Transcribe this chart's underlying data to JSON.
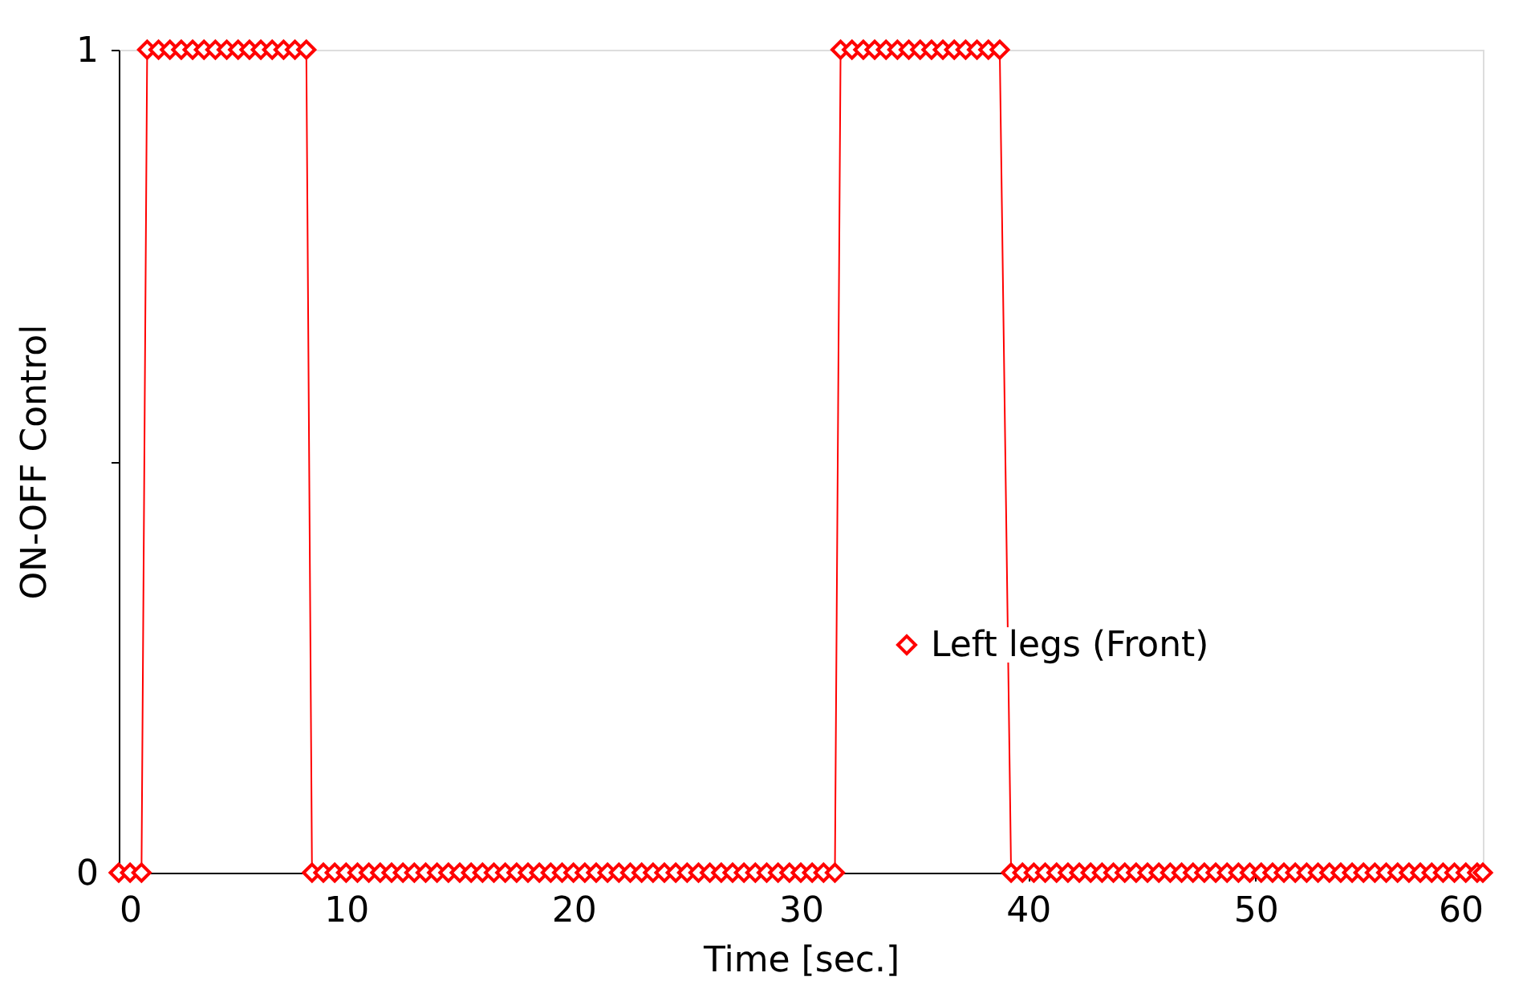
{
  "chart_data": {
    "type": "line",
    "xlabel": "Time [sec.]",
    "ylabel": "ON-OFF Control",
    "xlim": [
      0,
      60
    ],
    "xticks": [
      0,
      10,
      20,
      30,
      40,
      50,
      60
    ],
    "ylim": [
      0,
      1
    ],
    "yticks": [
      0,
      {
        "value": 0.5,
        "label": null
      },
      1
    ],
    "grid": false,
    "legend": "right",
    "marker": "diamond",
    "line_style": "solid",
    "series": [
      {
        "name": "Left legs (Front)",
        "color": "#ff0000",
        "x": [
          0,
          0.5,
          1.0,
          1.25,
          1.75,
          2.25,
          2.75,
          3.25,
          3.75,
          4.25,
          4.75,
          5.25,
          5.75,
          6.25,
          6.75,
          7.25,
          7.75,
          8.25,
          8.5,
          9,
          9.5,
          10,
          10.5,
          11,
          11.5,
          12,
          12.5,
          13,
          13.5,
          14,
          14.5,
          15,
          15.5,
          16,
          16.5,
          17,
          17.5,
          18,
          18.5,
          19,
          19.5,
          20,
          20.5,
          21,
          21.5,
          22,
          22.5,
          23,
          23.5,
          24,
          24.5,
          25,
          25.5,
          26,
          26.5,
          27,
          27.5,
          28,
          28.5,
          29,
          29.5,
          30,
          30.5,
          31,
          31.5,
          31.75,
          32.25,
          32.75,
          33.25,
          33.75,
          34.25,
          34.75,
          35.25,
          35.75,
          36.25,
          36.75,
          37.25,
          37.75,
          38.25,
          38.75,
          39.25,
          39.75,
          40.25,
          40.75,
          41.25,
          41.75,
          42.25,
          42.75,
          43.25,
          43.75,
          44.25,
          44.75,
          45.25,
          45.75,
          46.25,
          46.75,
          47.25,
          47.75,
          48.25,
          48.75,
          49.25,
          49.75,
          50.25,
          50.75,
          51.25,
          51.75,
          52.25,
          52.75,
          53.25,
          53.75,
          54.25,
          54.75,
          55.25,
          55.75,
          56.25,
          56.75,
          57.25,
          57.75,
          58.25,
          58.75,
          59.25,
          59.75,
          60
        ],
        "values": [
          0,
          0,
          0,
          1,
          1,
          1,
          1,
          1,
          1,
          1,
          1,
          1,
          1,
          1,
          1,
          1,
          1,
          1,
          0,
          0,
          0,
          0,
          0,
          0,
          0,
          0,
          0,
          0,
          0,
          0,
          0,
          0,
          0,
          0,
          0,
          0,
          0,
          0,
          0,
          0,
          0,
          0,
          0,
          0,
          0,
          0,
          0,
          0,
          0,
          0,
          0,
          0,
          0,
          0,
          0,
          0,
          0,
          0,
          0,
          0,
          0,
          0,
          0,
          0,
          0,
          1,
          1,
          1,
          1,
          1,
          1,
          1,
          1,
          1,
          1,
          1,
          1,
          1,
          1,
          1,
          0,
          0,
          0,
          0,
          0,
          0,
          0,
          0,
          0,
          0,
          0,
          0,
          0,
          0,
          0,
          0,
          0,
          0,
          0,
          0,
          0,
          0,
          0,
          0,
          0,
          0,
          0,
          0,
          0,
          0,
          0,
          0,
          0,
          0,
          0,
          0,
          0,
          0,
          0,
          0,
          0,
          0,
          0
        ]
      }
    ]
  }
}
